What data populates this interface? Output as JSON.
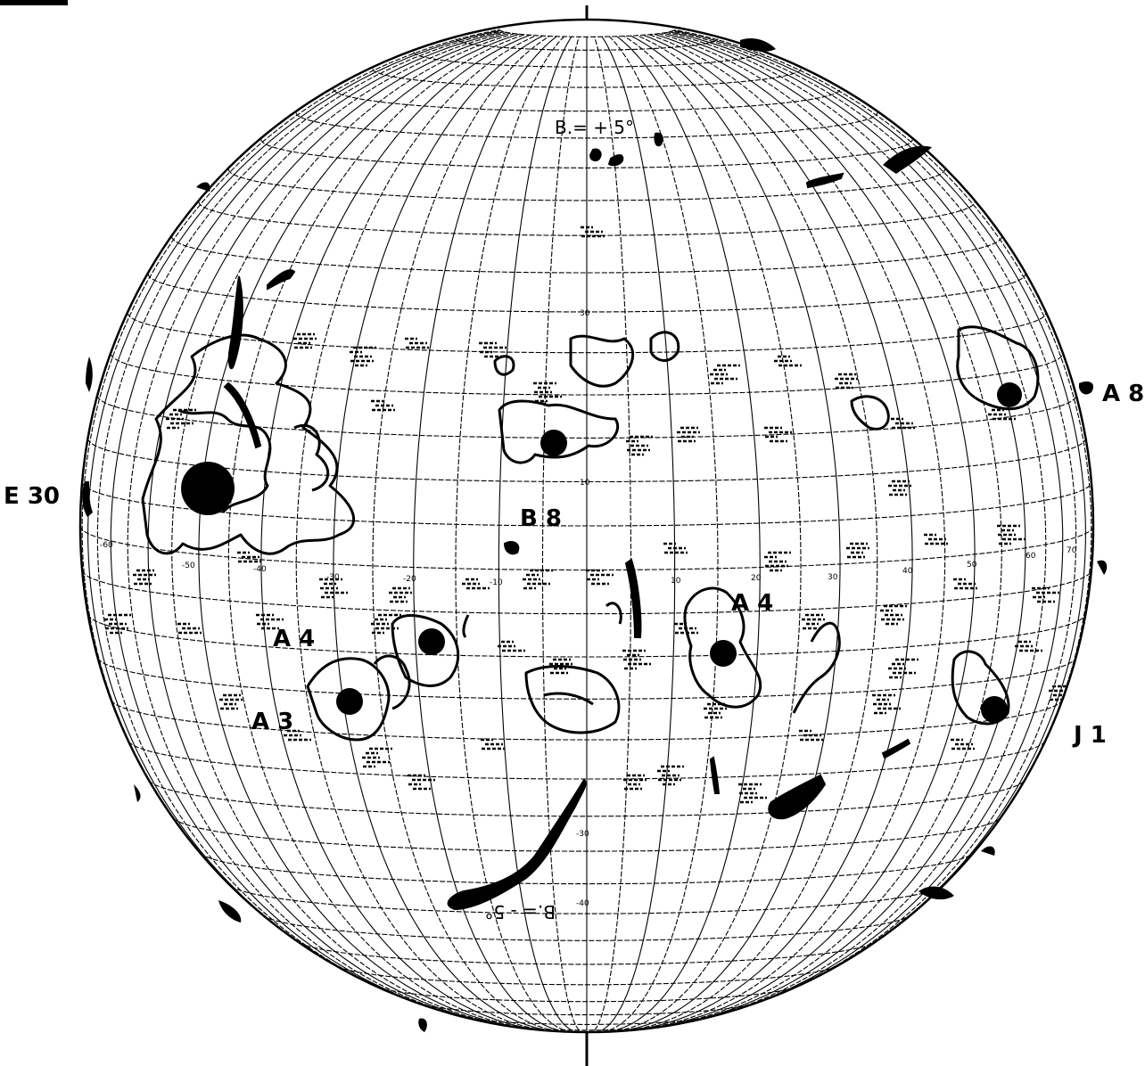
{
  "map": {
    "b_top": "B.= + 5°",
    "b_bottom": "B.= - 5°",
    "region_labels": {
      "e30": "E 30",
      "a8": "A 8",
      "b8": "B 8",
      "a4_left": "A 4",
      "a4_right": "A 4",
      "a3": "A 3",
      "j1": "J 1"
    },
    "lat_ticks": [
      "30",
      "10",
      "-30",
      "-40"
    ],
    "lon_ticks": [
      "-60",
      "-50",
      "-40",
      "-30",
      "-20",
      "-10",
      "10",
      "20",
      "30",
      "40",
      "50",
      "60",
      "70"
    ]
  },
  "colors": {
    "ink": "#000000",
    "paper": "#ffffff"
  }
}
